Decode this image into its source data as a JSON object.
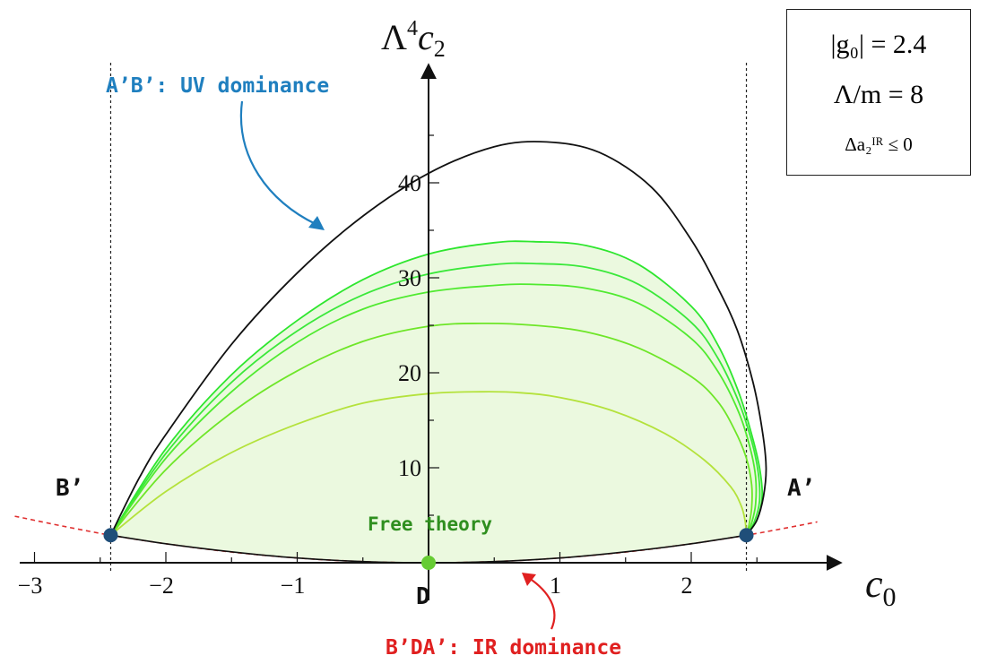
{
  "chart_data": {
    "type": "line",
    "xlabel_base": "c",
    "xlabel_sub": "0",
    "ylabel_main": "Λ",
    "ylabel_sup": "4",
    "ylabel_var": "c",
    "ylabel_sub": "2",
    "xlim": [
      -3.2,
      3.0
    ],
    "ylim": [
      -2,
      48
    ],
    "xticks": [
      -3,
      -2,
      -1,
      1,
      2
    ],
    "xtick_labels": [
      "−3",
      "−2",
      "−1",
      "1",
      "2"
    ],
    "yticks": [
      10,
      20,
      30,
      40
    ],
    "ytick_labels": [
      "10",
      "20",
      "30",
      "40"
    ],
    "dashed_verticals": [
      -2.42,
      2.42
    ],
    "outer_boundary": {
      "color": "#111111",
      "points": [
        [
          -2.42,
          2.9
        ],
        [
          -2.2,
          9
        ],
        [
          -2.0,
          13.5
        ],
        [
          -1.5,
          23
        ],
        [
          -1.0,
          30.5
        ],
        [
          -0.5,
          36.5
        ],
        [
          0,
          41
        ],
        [
          0.5,
          43.8
        ],
        [
          0.9,
          44.3
        ],
        [
          1.3,
          43.2
        ],
        [
          1.7,
          39.5
        ],
        [
          2.0,
          34
        ],
        [
          2.2,
          29
        ],
        [
          2.35,
          24.5
        ],
        [
          2.47,
          19
        ],
        [
          2.54,
          14
        ],
        [
          2.57,
          10
        ],
        [
          2.55,
          7
        ],
        [
          2.5,
          4.5
        ],
        [
          2.42,
          2.9
        ]
      ]
    },
    "green_curves": [
      {
        "color": "#2ee62e",
        "points": [
          [
            -2.42,
            2.9
          ],
          [
            -2.0,
            12
          ],
          [
            -1.5,
            19.8
          ],
          [
            -1.0,
            25.5
          ],
          [
            -0.5,
            29.8
          ],
          [
            0,
            32.5
          ],
          [
            0.5,
            33.7
          ],
          [
            0.8,
            33.8
          ],
          [
            1.2,
            33.4
          ],
          [
            1.6,
            31.4
          ],
          [
            2.0,
            27
          ],
          [
            2.2,
            23
          ],
          [
            2.36,
            18
          ],
          [
            2.46,
            13.5
          ],
          [
            2.52,
            10
          ],
          [
            2.54,
            7
          ],
          [
            2.5,
            4.5
          ],
          [
            2.42,
            2.9
          ]
        ]
      },
      {
        "color": "#3ae83a",
        "points": [
          [
            -2.42,
            2.9
          ],
          [
            -2.0,
            11.5
          ],
          [
            -1.5,
            19
          ],
          [
            -1.0,
            24.4
          ],
          [
            -0.5,
            28.2
          ],
          [
            0,
            30.4
          ],
          [
            0.5,
            31.4
          ],
          [
            0.8,
            31.5
          ],
          [
            1.2,
            31.1
          ],
          [
            1.6,
            29.3
          ],
          [
            2.0,
            25.3
          ],
          [
            2.2,
            21.6
          ],
          [
            2.36,
            17
          ],
          [
            2.46,
            12.8
          ],
          [
            2.51,
            9.5
          ],
          [
            2.52,
            6.5
          ],
          [
            2.48,
            4.3
          ],
          [
            2.42,
            2.9
          ]
        ]
      },
      {
        "color": "#50ea30",
        "points": [
          [
            -2.42,
            2.9
          ],
          [
            -2.0,
            11
          ],
          [
            -1.5,
            18
          ],
          [
            -1.0,
            23.2
          ],
          [
            -0.5,
            26.7
          ],
          [
            0,
            28.5
          ],
          [
            0.5,
            29.2
          ],
          [
            0.8,
            29.3
          ],
          [
            1.2,
            28.9
          ],
          [
            1.6,
            27.3
          ],
          [
            2.0,
            23.6
          ],
          [
            2.2,
            20.2
          ],
          [
            2.36,
            15.9
          ],
          [
            2.45,
            12
          ],
          [
            2.49,
            9
          ],
          [
            2.49,
            6.2
          ],
          [
            2.46,
            4.2
          ],
          [
            2.42,
            2.9
          ]
        ]
      },
      {
        "color": "#6ee628",
        "points": [
          [
            -2.42,
            2.9
          ],
          [
            -2.0,
            9.8
          ],
          [
            -1.5,
            15.8
          ],
          [
            -1.0,
            20.2
          ],
          [
            -0.5,
            23.3
          ],
          [
            0,
            24.9
          ],
          [
            0.4,
            25.2
          ],
          [
            0.8,
            25
          ],
          [
            1.2,
            24.3
          ],
          [
            1.6,
            22.6
          ],
          [
            2.0,
            19.6
          ],
          [
            2.2,
            17
          ],
          [
            2.33,
            14
          ],
          [
            2.42,
            11
          ],
          [
            2.46,
            8.2
          ],
          [
            2.46,
            5.8
          ],
          [
            2.44,
            4
          ],
          [
            2.42,
            2.9
          ]
        ]
      },
      {
        "color": "#b4e23c",
        "points": [
          [
            -2.42,
            2.9
          ],
          [
            -2.0,
            7.5
          ],
          [
            -1.5,
            11.6
          ],
          [
            -1.0,
            14.6
          ],
          [
            -0.5,
            16.8
          ],
          [
            0,
            17.8
          ],
          [
            0.4,
            18
          ],
          [
            0.7,
            17.9
          ],
          [
            1.0,
            17.4
          ],
          [
            1.4,
            16
          ],
          [
            1.8,
            13.6
          ],
          [
            2.1,
            10.8
          ],
          [
            2.3,
            8
          ],
          [
            2.38,
            6
          ],
          [
            2.41,
            4.4
          ],
          [
            2.42,
            2.9
          ]
        ]
      }
    ],
    "lower_boundary": {
      "color": "#111111",
      "points": [
        [
          -2.42,
          2.9
        ],
        [
          -2.0,
          2.0
        ],
        [
          -1.5,
          1.15
        ],
        [
          -1.0,
          0.5
        ],
        [
          -0.5,
          0.12
        ],
        [
          0,
          0
        ],
        [
          0.5,
          0.12
        ],
        [
          1.0,
          0.5
        ],
        [
          1.5,
          1.15
        ],
        [
          2.0,
          2.0
        ],
        [
          2.42,
          2.9
        ]
      ]
    },
    "red_dashed_parabola": {
      "color": "#e03030",
      "points": [
        [
          -3.15,
          4.9
        ],
        [
          -2.8,
          3.9
        ],
        [
          -2.42,
          2.9
        ],
        [
          -2.0,
          2.0
        ],
        [
          -1.5,
          1.12
        ],
        [
          -1.0,
          0.5
        ],
        [
          -0.5,
          0.12
        ],
        [
          0,
          0
        ],
        [
          0.5,
          0.12
        ],
        [
          1.0,
          0.5
        ],
        [
          1.5,
          1.12
        ],
        [
          2.0,
          2.0
        ],
        [
          2.42,
          2.9
        ],
        [
          2.7,
          3.6
        ],
        [
          2.96,
          4.3
        ]
      ]
    },
    "points": [
      {
        "name": "B'",
        "x": -2.42,
        "y": 2.9,
        "color": "#1f4e79"
      },
      {
        "name": "A'",
        "x": 2.42,
        "y": 2.9,
        "color": "#1f4e79"
      },
      {
        "name": "D",
        "x": 0,
        "y": 0,
        "color": "#66cc33"
      }
    ],
    "fill_color": "#e9f8dc"
  },
  "labels": {
    "uv": "A’B’: UV dominance",
    "ir": "B’DA’: IR dominance",
    "free": "Free theory",
    "b_prime": "B’",
    "a_prime": "A’",
    "d": "D"
  },
  "colors": {
    "uv": "#1f7fbf",
    "ir": "#e02020",
    "free": "#2f8f1f"
  },
  "params": {
    "g0": "|g₀| = 2.4",
    "lambda_m": "Λ/m = 8",
    "delta_a": "Δa₂ᴵᴿ ≤ 0"
  }
}
